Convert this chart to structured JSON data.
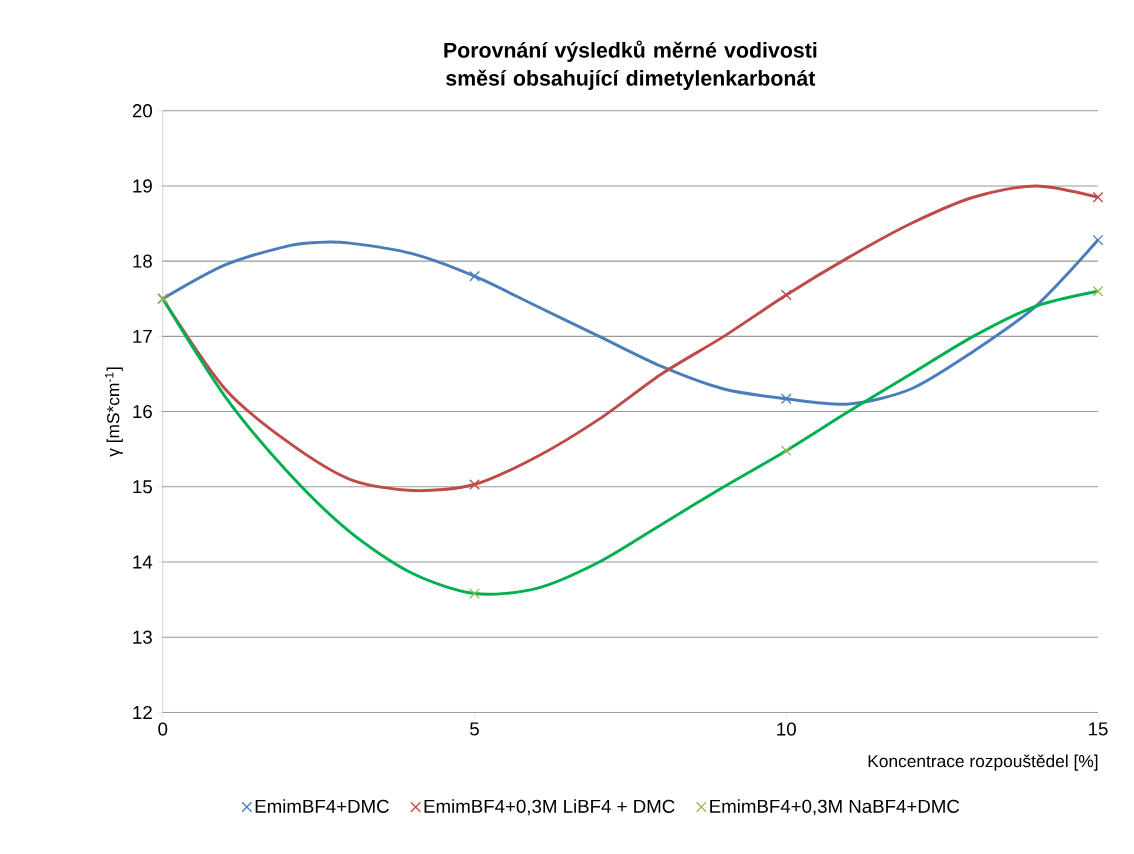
{
  "chart_data": {
    "type": "line",
    "title": "Porovnání výsledků měrné vodivosti směsí obsahující dimetylenkarbonát",
    "xlabel": "Koncentrace rozpouštědel [%]",
    "ylabel": "γ [mS*cm$^{-1}$]",
    "xlim": [
      0,
      15
    ],
    "ylim": [
      12,
      20
    ],
    "xticks": [
      0,
      5,
      10,
      15
    ],
    "yticks": [
      12,
      13,
      14,
      15,
      16,
      17,
      18,
      19,
      20
    ],
    "grid": "y",
    "legend": "bottom",
    "series": [
      {
        "color": "#4a7ebb",
        "marker": "none",
        "x": [
          0,
          1,
          2,
          2.5,
          3,
          4,
          5,
          6,
          7,
          8,
          9,
          10,
          11,
          12,
          13,
          14,
          15
        ],
        "values": [
          17.5,
          17.95,
          18.2,
          18.25,
          18.24,
          18.1,
          17.8,
          17.4,
          17.0,
          16.6,
          16.3,
          16.17,
          16.1,
          16.3,
          16.8,
          17.4,
          18.28
        ]
      },
      {
        "color": "#be4b48",
        "marker": "none",
        "x": [
          0,
          1,
          2,
          3,
          4,
          5,
          6,
          7,
          8,
          9,
          10,
          11,
          12,
          13,
          14,
          15
        ],
        "values": [
          17.5,
          16.3,
          15.6,
          15.1,
          14.95,
          15.03,
          15.4,
          15.9,
          16.5,
          17.0,
          17.55,
          18.05,
          18.5,
          18.85,
          19.0,
          18.85
        ]
      },
      {
        "color": "#00b050",
        "marker": "none",
        "x": [
          0,
          1,
          2,
          3,
          4,
          5,
          6,
          7,
          8,
          9,
          10,
          11,
          12,
          13,
          14,
          15
        ],
        "values": [
          17.5,
          16.2,
          15.2,
          14.4,
          13.85,
          13.58,
          13.65,
          14.0,
          14.5,
          15.0,
          15.48,
          16.0,
          16.5,
          17.0,
          17.4,
          17.6
        ]
      },
      {
        "type": "scatter",
        "name": "EmimBF4+DMC",
        "color": "#4a7ebb",
        "marker": "cross",
        "x": [
          0,
          5,
          10,
          15
        ],
        "values": [
          17.5,
          17.8,
          16.17,
          18.28
        ]
      },
      {
        "type": "scatter",
        "name": "EmimBF4+0,3M LiBF4 + DMC",
        "color": "#be4b48",
        "marker": "cross",
        "x": [
          0,
          5,
          10,
          15
        ],
        "values": [
          17.5,
          15.03,
          17.55,
          18.85
        ]
      },
      {
        "type": "scatter",
        "name": "EmimBF4+0,3M NaBF4+DMC",
        "color": "#98b954",
        "marker": "cross",
        "x": [
          0,
          5,
          10,
          15
        ],
        "values": [
          17.5,
          13.58,
          15.48,
          17.6
        ]
      }
    ]
  }
}
